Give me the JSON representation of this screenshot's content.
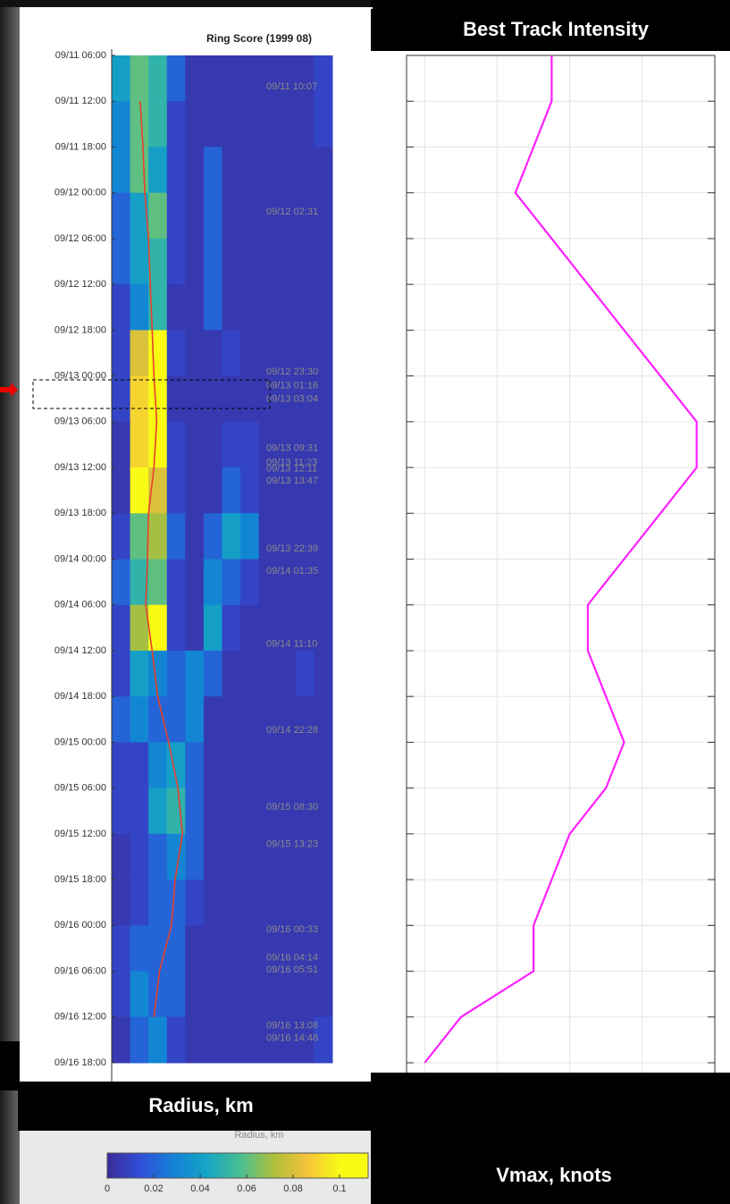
{
  "chart_data": [
    {
      "type": "heatmap",
      "title": "Ring Score (1999 08)",
      "xlabel": "Radius, km",
      "categories": [
        "09/11 06:00",
        "09/11 12:00",
        "09/11 18:00",
        "09/12 00:00",
        "09/12 06:00",
        "09/12 12:00",
        "09/12 18:00",
        "09/13 00:00",
        "09/13 06:00",
        "09/13 12:00",
        "09/13 18:00",
        "09/14 00:00",
        "09/14 06:00",
        "09/14 12:00",
        "09/14 18:00",
        "09/15 00:00",
        "09/15 06:00",
        "09/15 12:00",
        "09/15 18:00",
        "09/16 00:00",
        "09/16 06:00",
        "09/16 12:00",
        "09/16 18:00"
      ],
      "xlim": [
        0,
        12
      ],
      "cells": [
        [
          0.04,
          0.06,
          0.05,
          0.02,
          0.005,
          0.005,
          0.005,
          0.005,
          0.005,
          0.005,
          0.005,
          0.01
        ],
        [
          0.03,
          0.06,
          0.05,
          0.01,
          0.005,
          0.005,
          0.005,
          0.005,
          0.005,
          0.005,
          0.005,
          0.01
        ],
        [
          0.03,
          0.06,
          0.04,
          0.01,
          0.005,
          0.02,
          0.005,
          0.005,
          0.005,
          0.005,
          0.005,
          0.005
        ],
        [
          0.02,
          0.04,
          0.06,
          0.01,
          0.005,
          0.02,
          0.005,
          0.005,
          0.005,
          0.005,
          0.005,
          0.005
        ],
        [
          0.02,
          0.04,
          0.05,
          0.01,
          0.005,
          0.02,
          0.005,
          0.005,
          0.005,
          0.005,
          0.005,
          0.005
        ],
        [
          0.01,
          0.03,
          0.05,
          0.005,
          0.005,
          0.02,
          0.005,
          0.005,
          0.005,
          0.005,
          0.005,
          0.005
        ],
        [
          0.01,
          0.08,
          0.1,
          0.01,
          0.005,
          0.005,
          0.01,
          0.005,
          0.005,
          0.005,
          0.005,
          0.005
        ],
        [
          0.01,
          0.09,
          0.1,
          0.005,
          0.005,
          0.005,
          0.005,
          0.005,
          0.005,
          0.005,
          0.005,
          0.005
        ],
        [
          0.005,
          0.09,
          0.1,
          0.01,
          0.005,
          0.005,
          0.01,
          0.01,
          0.005,
          0.005,
          0.005,
          0.005
        ],
        [
          0.005,
          0.1,
          0.08,
          0.01,
          0.005,
          0.005,
          0.02,
          0.01,
          0.005,
          0.005,
          0.005,
          0.005
        ],
        [
          0.01,
          0.06,
          0.07,
          0.02,
          0.005,
          0.02,
          0.04,
          0.03,
          0.005,
          0.005,
          0.005,
          0.005
        ],
        [
          0.02,
          0.05,
          0.06,
          0.01,
          0.005,
          0.03,
          0.02,
          0.01,
          0.005,
          0.005,
          0.005,
          0.005
        ],
        [
          0.01,
          0.07,
          0.1,
          0.01,
          0.005,
          0.04,
          0.01,
          0.005,
          0.005,
          0.005,
          0.005,
          0.005
        ],
        [
          0.01,
          0.04,
          0.03,
          0.02,
          0.03,
          0.02,
          0.005,
          0.005,
          0.005,
          0.005,
          0.01,
          0.005
        ],
        [
          0.02,
          0.03,
          0.02,
          0.02,
          0.03,
          0.005,
          0.005,
          0.005,
          0.005,
          0.005,
          0.005,
          0.005
        ],
        [
          0.01,
          0.01,
          0.03,
          0.04,
          0.02,
          0.005,
          0.005,
          0.005,
          0.005,
          0.005,
          0.005,
          0.005
        ],
        [
          0.01,
          0.01,
          0.04,
          0.05,
          0.02,
          0.005,
          0.005,
          0.005,
          0.005,
          0.005,
          0.005,
          0.005
        ],
        [
          0.005,
          0.01,
          0.02,
          0.03,
          0.02,
          0.005,
          0.005,
          0.005,
          0.005,
          0.005,
          0.005,
          0.005
        ],
        [
          0.005,
          0.01,
          0.02,
          0.02,
          0.01,
          0.005,
          0.005,
          0.005,
          0.005,
          0.005,
          0.005,
          0.005
        ],
        [
          0.01,
          0.02,
          0.02,
          0.02,
          0.005,
          0.005,
          0.005,
          0.005,
          0.005,
          0.005,
          0.005,
          0.005
        ],
        [
          0.01,
          0.03,
          0.02,
          0.02,
          0.005,
          0.005,
          0.005,
          0.005,
          0.005,
          0.005,
          0.005,
          0.005
        ],
        [
          0.005,
          0.02,
          0.03,
          0.01,
          0.005,
          0.005,
          0.005,
          0.005,
          0.005,
          0.005,
          0.005,
          0.01
        ]
      ],
      "track": {
        "color": "#e8402a",
        "values": [
          null,
          1.55,
          1.7,
          1.8,
          2.0,
          2.1,
          2.2,
          2.3,
          2.45,
          2.3,
          2.0,
          1.95,
          1.85,
          2.2,
          2.5,
          3.1,
          3.6,
          3.85,
          3.45,
          3.25,
          2.6,
          2.3,
          null
        ]
      },
      "colormap": [
        "#3b2c9b",
        "#2f50d8",
        "#1382d5",
        "#16a6c3",
        "#4bbf91",
        "#aebf3a",
        "#f5c33a",
        "#f9fb15"
      ],
      "clim": [
        0,
        0.1
      ],
      "cticks": [
        0,
        0.02,
        0.04,
        0.06,
        0.08,
        0.1
      ],
      "annotations": [
        "09/11 10:07",
        "09/12 02:31",
        "09/12 23:30",
        "09/13 01:16",
        "09/13 03:04",
        "09/13 09:31",
        "09/13 11:23",
        "09/13 12:11",
        "09/13 13:47",
        "09/13 22:39",
        "09/14 01:35",
        "09/14 11:10",
        "09/14 22:28",
        "09/15 08:30",
        "09/15 13:23",
        "09/16 00:33",
        "09/16 04:14",
        "09/16 05:51",
        "09/16 13:08",
        "09/16 14:48"
      ]
    },
    {
      "type": "line",
      "title": "Best Track Intensity",
      "xlabel": "Vmax, knots",
      "color": "#ff1fff",
      "values": [
        95,
        95,
        90,
        85,
        95,
        105,
        115,
        125,
        135,
        135,
        125,
        115,
        105,
        105,
        110,
        115,
        110,
        100,
        95,
        90,
        90,
        70,
        60
      ],
      "xlim": [
        55,
        140
      ],
      "xticks": [
        60,
        80,
        100,
        120,
        140
      ],
      "grid": true
    }
  ]
}
